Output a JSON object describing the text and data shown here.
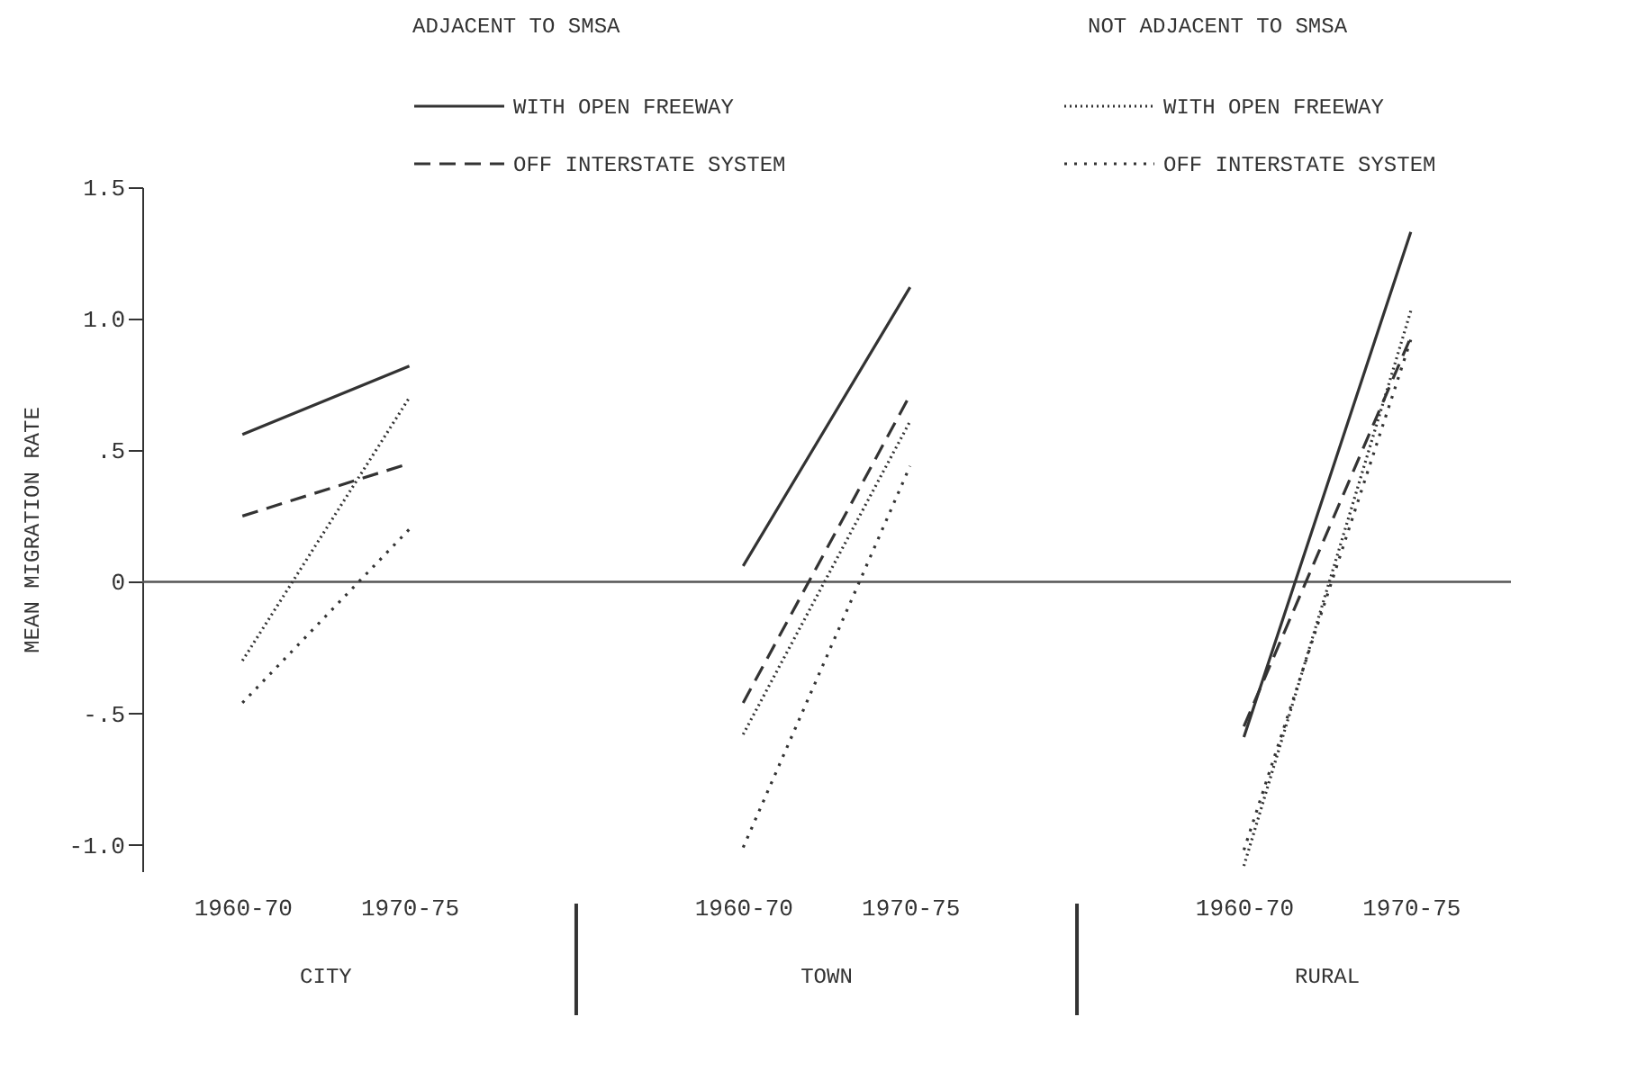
{
  "chart_data": {
    "type": "line",
    "ylabel": "MEAN MIGRATION RATE",
    "legend": "top",
    "legend_title": "ADJACENT TO SMSA",
    "annotations": [
      "NOT ADJACENT TO SMSA",
      "CITY",
      "TOWN",
      "RURAL"
    ],
    "grid": false,
    "categories": [
      "1960-70",
      "1970-75",
      null,
      "1960-70",
      "1970-75",
      null,
      "1960-70",
      "1970-75"
    ],
    "series": [
      {
        "name": "WITH OPEN FREEWAY",
        "color": "#333333",
        "line_style": "solid",
        "values": [
          0.56,
          0.82,
          null,
          0.06,
          1.12,
          null,
          -0.59,
          1.33
        ]
      },
      {
        "name": "OFF INTERSTATE SYSTEM",
        "color": "#333333",
        "line_style": "dashed",
        "values": [
          0.25,
          0.45,
          null,
          -0.46,
          0.71,
          null,
          -0.55,
          0.93
        ]
      },
      {
        "name": "WITH OPEN FREEWAY",
        "color": "#333333",
        "line_style": "dotted",
        "values": [
          -0.3,
          0.7,
          null,
          -0.58,
          0.61,
          null,
          -1.08,
          1.03
        ]
      },
      {
        "name": "OFF INTERSTATE SYSTEM",
        "color": "#333333",
        "line_style": "dotted",
        "values": [
          -0.46,
          0.2,
          null,
          -1.01,
          0.44,
          null,
          -1.02,
          0.92
        ]
      }
    ],
    "ylim": [
      -1.1,
      1.5
    ],
    "yticks": [
      1.5,
      {
        "value": 1.0,
        "label": "1.0"
      },
      {
        "value": 0.5,
        "label": ".5"
      },
      0,
      {
        "value": -0.5,
        "label": "-.5"
      },
      {
        "value": -1.0,
        "label": "-1.0"
      }
    ],
    "ref_lines": [
      {
        "axis": "y",
        "value": 0,
        "color": "#555555"
      }
    ]
  }
}
